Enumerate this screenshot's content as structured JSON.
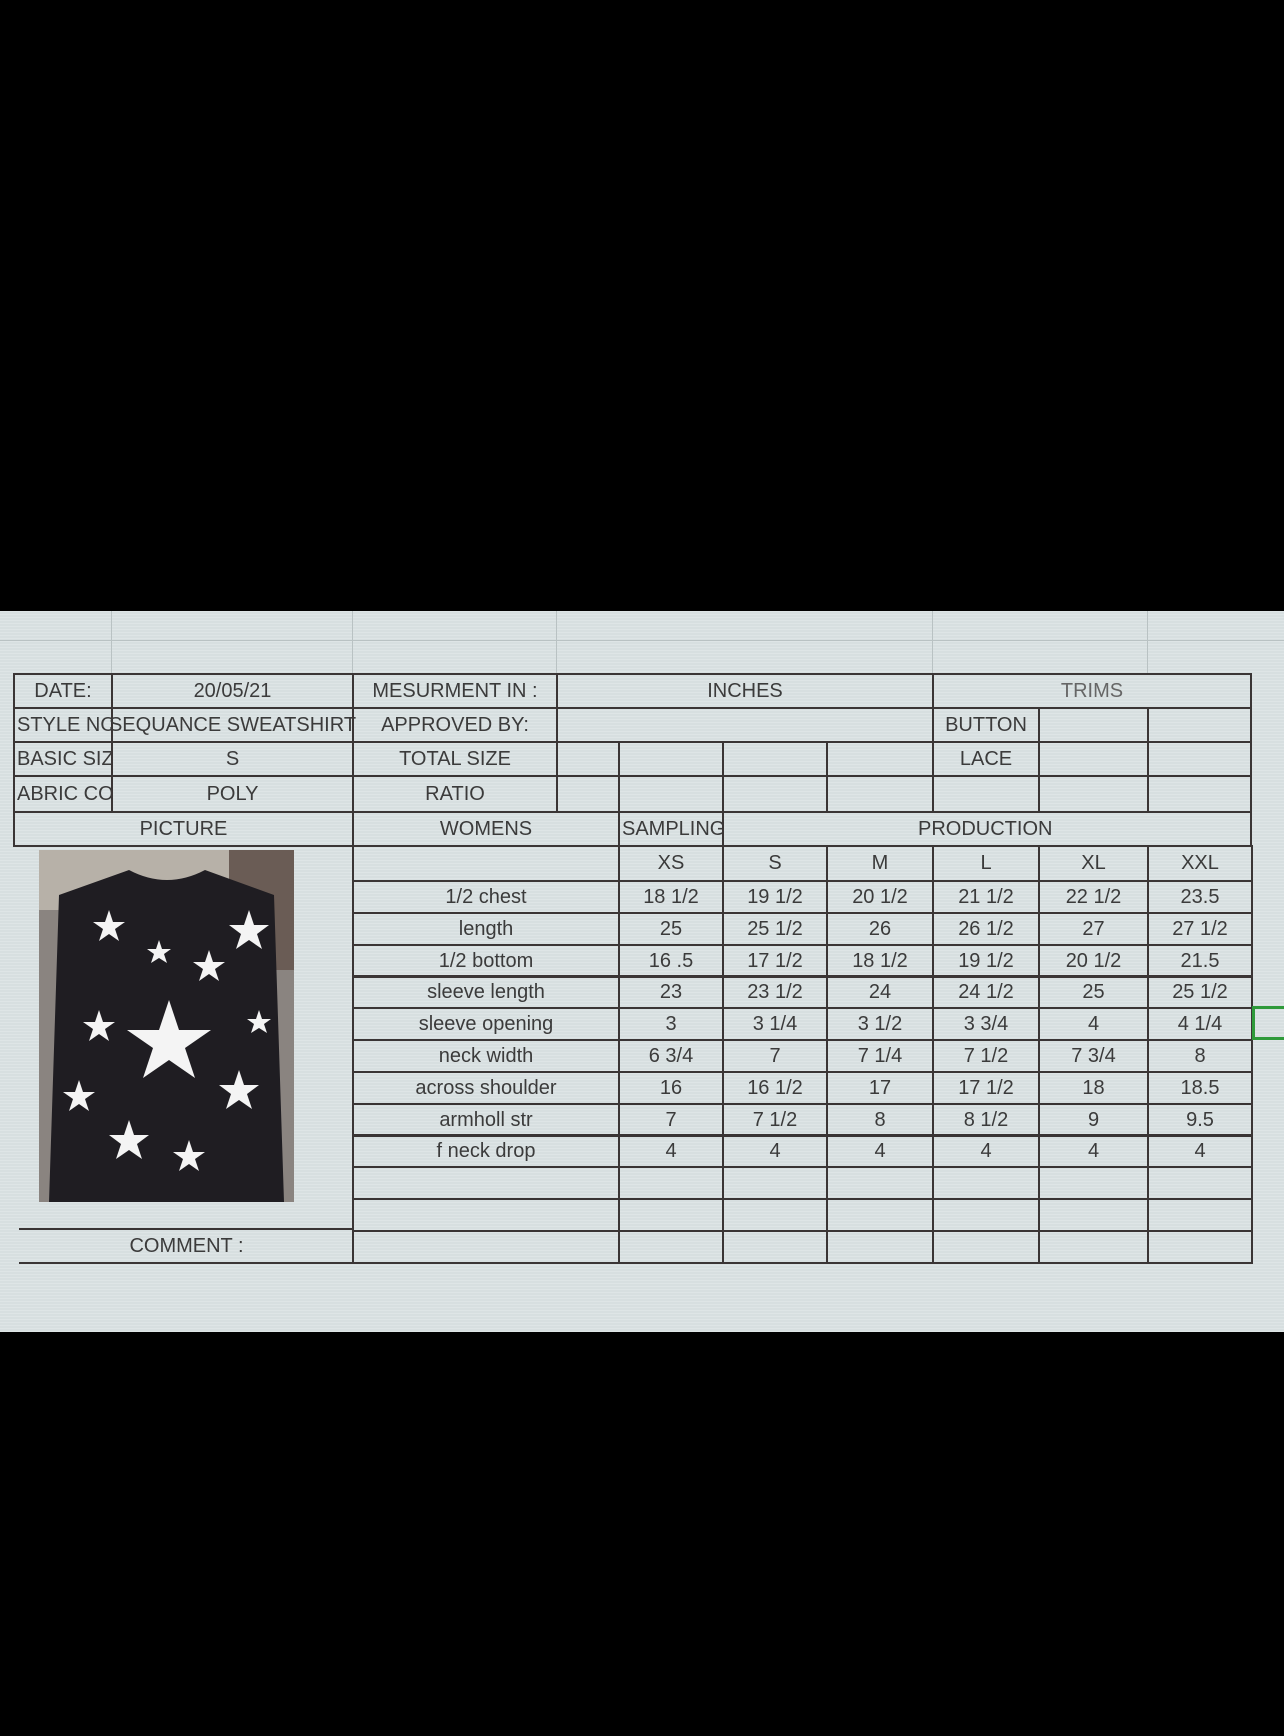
{
  "header": {
    "date_label": "DATE:",
    "date_value": "20/05/21",
    "measurement_label": "MESURMENT IN :",
    "measurement_value": "INCHES",
    "trims_label": "TRIMS",
    "style_label": "STYLE NO:",
    "style_value": "SEQUANCE SWEATSHIRT",
    "approved_label": "APPROVED BY:",
    "button_label": "BUTTON",
    "basic_size_label": "BASIC SIZE",
    "basic_size_value": "S",
    "total_size_label": "TOTAL SIZE",
    "lace_label": "LACE",
    "fabric_label": "ABRIC CO",
    "fabric_value": "POLY",
    "ratio_label": "RATIO",
    "picture_label": "PICTURE",
    "womens_label": "WOMENS",
    "sampling_label": "SAMPLING",
    "production_label": "PRODUCTION",
    "comment_label": "COMMENT :"
  },
  "sizes": [
    "XS",
    "S",
    "M",
    "L",
    "XL",
    "XXL"
  ],
  "measurements": [
    {
      "name": "1/2 chest",
      "values": [
        "18 1/2",
        "19 1/2",
        "20 1/2",
        "21 1/2",
        "22 1/2",
        "23.5"
      ]
    },
    {
      "name": "length",
      "values": [
        "25",
        "25 1/2",
        "26",
        "26 1/2",
        "27",
        "27 1/2"
      ]
    },
    {
      "name": "1/2 bottom",
      "values": [
        "16 .5",
        "17 1/2",
        "18 1/2",
        "19 1/2",
        "20 1/2",
        "21.5"
      ]
    },
    {
      "name": "sleeve length",
      "values": [
        "23",
        "23 1/2",
        "24",
        "24 1/2",
        "25",
        "25 1/2"
      ]
    },
    {
      "name": "sleeve opening",
      "values": [
        "3",
        "3 1/4",
        "3 1/2",
        "3 3/4",
        "4",
        "4 1/4"
      ]
    },
    {
      "name": "neck width",
      "values": [
        "6 3/4",
        "7",
        "7 1/4",
        "7 1/2",
        "7 3/4",
        "8"
      ]
    },
    {
      "name": "across shoulder",
      "values": [
        "16",
        "16 1/2",
        "17",
        "17 1/2",
        "18",
        "18.5"
      ]
    },
    {
      "name": "armholl str",
      "values": [
        "7",
        "7 1/2",
        "8",
        "8 1/2",
        "9",
        "9.5"
      ]
    },
    {
      "name": "f neck drop",
      "values": [
        "4",
        "4",
        "4",
        "4",
        "4",
        "4"
      ]
    }
  ],
  "colors": {
    "sheet_bg": "#d7dfe0",
    "text": "#3b3b3b",
    "border": "#3a3535",
    "selection": "#2e9a3a"
  }
}
